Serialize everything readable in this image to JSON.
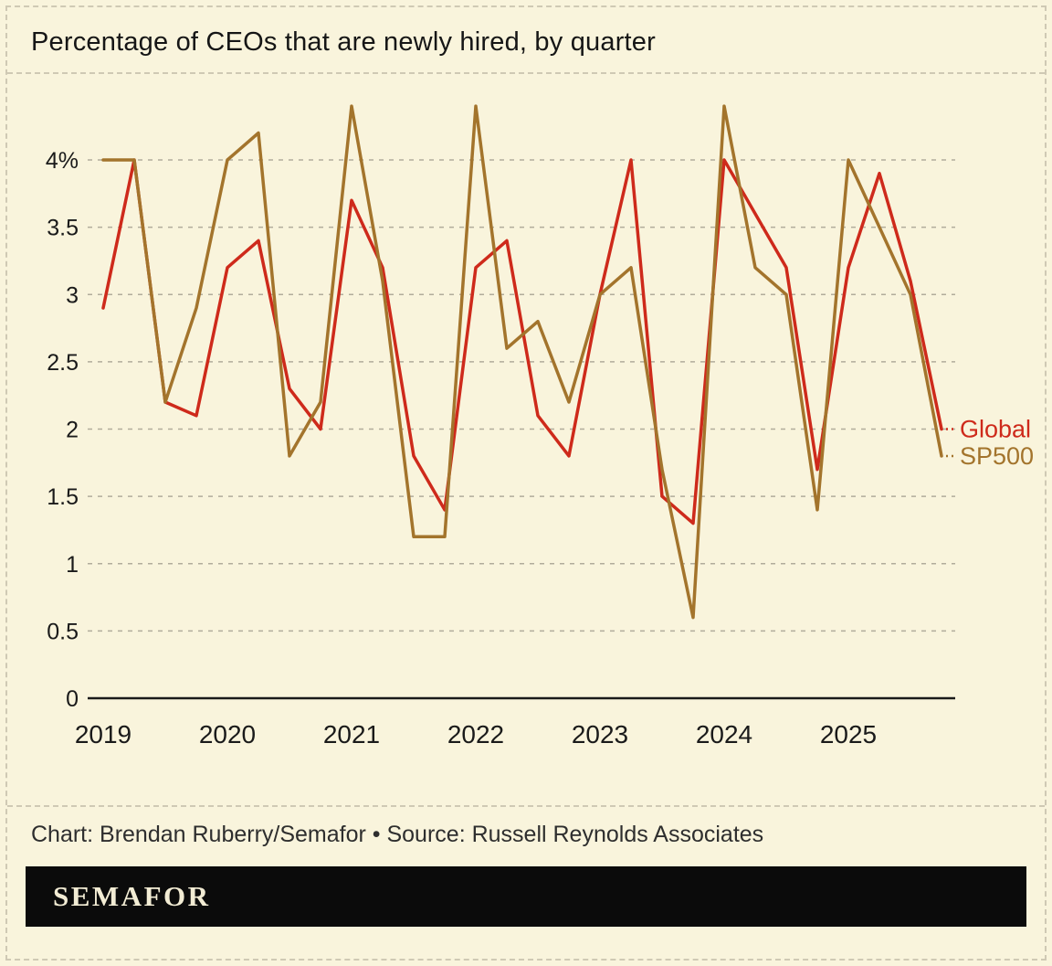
{
  "title": "Percentage of CEOs that are newly hired, by quarter",
  "credit": "Chart: Brendan Ruberry/Semafor • Source: Russell Reynolds Associates",
  "logo": "SEMAFOR",
  "colors": {
    "background": "#f9f4dc",
    "axis": "#1a1a1a",
    "grid": "#b1ac9b",
    "global_series": "#ce2a1b",
    "sp500_series": "#a3742c",
    "logo_bar": "#0b0b0b",
    "logo_text": "#f2ecd4"
  },
  "chart_data": {
    "type": "line",
    "title": "Percentage of CEOs that are newly hired, by quarter",
    "x_unit": "quarter",
    "start_year": 2019,
    "x_tick_labels": [
      "2019",
      "2020",
      "2021",
      "2022",
      "2023",
      "2024",
      "2025"
    ],
    "y_ticks": [
      0,
      0.5,
      1,
      1.5,
      2,
      2.5,
      3,
      3.5,
      4
    ],
    "y_tick_labels": [
      "0",
      "0.5",
      "1",
      "1.5",
      "2",
      "2.5",
      "3",
      "3.5",
      "4%"
    ],
    "ylim": [
      0,
      4.45
    ],
    "grid": "dashed-horizontal",
    "legend_position": "right-of-line-ends",
    "series": [
      {
        "name": "Global",
        "color": "#ce2a1b",
        "values": [
          2.9,
          4.0,
          2.2,
          2.1,
          3.2,
          3.4,
          2.3,
          2.0,
          3.7,
          3.2,
          1.8,
          1.4,
          3.2,
          3.4,
          2.1,
          1.8,
          3.0,
          4.0,
          1.5,
          1.3,
          4.0,
          3.6,
          3.2,
          1.7,
          3.2,
          3.9,
          3.1,
          2.0
        ]
      },
      {
        "name": "SP500",
        "color": "#a3742c",
        "values": [
          4.0,
          4.0,
          2.2,
          2.9,
          4.0,
          4.2,
          1.8,
          2.2,
          4.4,
          3.1,
          1.2,
          1.2,
          4.4,
          2.6,
          2.8,
          2.2,
          3.0,
          3.2,
          1.7,
          0.6,
          4.4,
          3.2,
          3.0,
          1.4,
          4.0,
          3.5,
          3.0,
          1.8
        ]
      }
    ]
  }
}
